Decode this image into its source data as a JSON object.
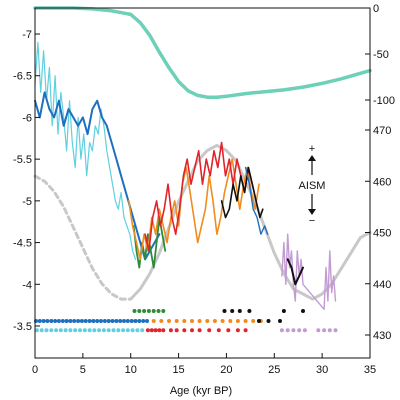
{
  "chart_data": {
    "type": "line",
    "xlabel": "Age (kyr BP)",
    "xlim": [
      0,
      35
    ],
    "x_ticks": [
      "0",
      "5",
      "10",
      "15",
      "20",
      "25",
      "30",
      "35"
    ],
    "axes": {
      "left": {
        "ylim": [
          -7.4,
          -3.2
        ],
        "ticks": [
          "-7",
          "-6.5",
          "-6",
          "-5.5",
          "-5",
          "-4.5",
          "-4",
          "-3.5"
        ]
      },
      "right_top": {
        "ylim": [
          -100,
          0
        ],
        "ticks": [
          "0",
          "-50",
          "-100"
        ]
      },
      "right_bottom": {
        "ylim": [
          425,
          472
        ],
        "ticks": [
          "470",
          "460",
          "450",
          "440",
          "430"
        ]
      }
    },
    "annotation": {
      "label": "AISM",
      "plus": "+",
      "minus": "−"
    },
    "colors": {
      "teal": "#6dd0b8",
      "insolation": "#c8c8c8",
      "cyan": "#5fd0df",
      "blue": "#1f6fbf",
      "green": "#2e8b3a",
      "orange": "#f08c1e",
      "red": "#e0242a",
      "black": "#111111",
      "purple": "#c39bd3"
    },
    "series": [
      {
        "axis": "right_top",
        "color": "teal",
        "width": 3.5,
        "x": [
          0,
          2,
          4,
          6,
          8,
          10,
          11,
          12,
          13,
          14,
          15,
          16,
          17,
          18,
          19,
          20,
          22,
          24,
          26,
          28,
          30,
          32,
          34,
          35
        ],
        "y": [
          0,
          0,
          0,
          -1,
          -3,
          -7,
          -16,
          -30,
          -48,
          -65,
          -80,
          -90,
          -95,
          -97,
          -97,
          -96,
          -93,
          -91,
          -89,
          -86,
          -82,
          -77,
          -71,
          -68
        ]
      },
      {
        "axis": "right_bottom",
        "color": "insolation",
        "width": 3,
        "dash_until_x": 9.5,
        "x": [
          0,
          1,
          2,
          3,
          4,
          5,
          6,
          7,
          8,
          9,
          10,
          11,
          12,
          13,
          14,
          15,
          16,
          17,
          18,
          19,
          20,
          21,
          22,
          23,
          24,
          25,
          26,
          27,
          28,
          29,
          30,
          31,
          32,
          33,
          34,
          35
        ],
        "y": [
          461,
          460,
          458,
          455,
          451,
          447,
          443,
          440,
          438,
          437,
          437,
          439,
          442,
          446,
          451,
          456,
          460,
          464,
          466,
          467,
          466,
          464,
          460,
          456,
          451,
          446,
          442,
          439,
          438,
          437,
          438,
          440,
          443,
          446,
          449,
          450
        ]
      },
      {
        "axis": "left",
        "color": "cyan",
        "width": 1.2,
        "x": [
          0,
          0.3,
          0.6,
          0.9,
          1.2,
          1.5,
          1.8,
          2.1,
          2.4,
          2.7,
          3.0,
          3.3,
          3.6,
          3.9,
          4.2,
          4.5,
          4.8,
          5.1,
          5.4,
          5.7,
          6.0,
          6.3,
          6.6,
          6.9,
          7.2,
          7.5,
          7.8,
          8.1,
          8.4,
          8.7,
          9.0,
          9.3,
          9.6,
          9.9,
          10.2,
          10.5
        ],
        "y": [
          -6.4,
          -6.9,
          -6.3,
          -6.8,
          -6.2,
          -6.6,
          -5.9,
          -6.5,
          -5.8,
          -6.3,
          -6.0,
          -5.6,
          -6.2,
          -5.7,
          -5.4,
          -6.0,
          -5.5,
          -5.8,
          -5.3,
          -5.7,
          -5.6,
          -5.9,
          -5.8,
          -6.1,
          -5.9,
          -5.6,
          -5.4,
          -5.2,
          -5.0,
          -4.9,
          -5.1,
          -4.8,
          -4.7,
          -4.6,
          -4.4,
          -4.3
        ]
      },
      {
        "axis": "left",
        "color": "blue",
        "width": 2,
        "x": [
          0,
          0.5,
          1,
          1.5,
          2,
          2.5,
          3,
          3.5,
          4,
          4.5,
          5,
          5.5,
          6,
          6.5,
          7,
          7.5,
          8,
          8.5,
          9,
          9.5,
          10,
          10.5,
          11,
          11.5,
          12,
          12.5,
          13
        ],
        "y": [
          -6.2,
          -6.0,
          -6.3,
          -6.1,
          -6.0,
          -6.2,
          -5.9,
          -6.1,
          -6.0,
          -5.9,
          -6.0,
          -5.8,
          -6.1,
          -6.2,
          -6.0,
          -5.9,
          -5.7,
          -5.5,
          -5.3,
          -5.1,
          -4.9,
          -4.7,
          -4.5,
          -4.3,
          -4.4,
          -4.5,
          -4.6
        ]
      },
      {
        "axis": "left",
        "color": "green",
        "width": 1.8,
        "x": [
          10.3,
          10.6,
          10.9,
          11.2,
          11.5,
          11.8,
          12.1,
          12.4,
          12.7,
          13.0,
          13.3,
          13.6
        ],
        "y": [
          -4.7,
          -4.4,
          -4.2,
          -4.5,
          -4.3,
          -4.6,
          -4.4,
          -4.2,
          -4.5,
          -4.8,
          -4.6,
          -4.4
        ]
      },
      {
        "axis": "left",
        "color": "orange",
        "width": 1.6,
        "x": [
          9.8,
          10.2,
          10.6,
          11,
          11.4,
          11.8,
          12.2,
          12.6,
          13,
          13.4,
          13.8,
          14.2,
          14.6,
          15,
          15.4,
          15.8,
          16.2,
          16.6,
          17,
          17.4,
          17.8,
          18.2,
          18.6,
          19,
          19.4,
          19.8,
          20.2,
          20.6,
          21,
          21.4,
          21.8,
          22.2,
          22.6,
          23,
          23.4
        ],
        "y": [
          -5.0,
          -4.7,
          -4.5,
          -4.3,
          -4.6,
          -4.4,
          -4.8,
          -4.6,
          -4.9,
          -4.7,
          -4.5,
          -4.8,
          -5.0,
          -4.7,
          -5.2,
          -5.4,
          -5.1,
          -4.8,
          -4.5,
          -4.7,
          -4.9,
          -5.3,
          -5.0,
          -4.6,
          -4.8,
          -5.1,
          -5.3,
          -5.5,
          -5.2,
          -4.9,
          -5.2,
          -5.4,
          -5.1,
          -4.9,
          -5.2
        ]
      },
      {
        "axis": "left",
        "color": "red",
        "width": 1.6,
        "x": [
          11.5,
          11.9,
          12.3,
          12.7,
          13.1,
          13.5,
          13.9,
          14.3,
          14.7,
          15.1,
          15.5,
          15.9,
          16.3,
          16.7,
          17.1,
          17.5,
          17.9,
          18.3,
          18.7,
          19.1,
          19.5,
          19.9,
          20.3,
          20.7,
          21.1,
          21.5,
          21.9,
          22.3,
          22.7,
          23.1
        ],
        "y": [
          -4.6,
          -4.4,
          -4.8,
          -5.0,
          -4.7,
          -4.9,
          -5.2,
          -4.8,
          -4.6,
          -4.9,
          -5.3,
          -5.5,
          -5.2,
          -5.4,
          -5.6,
          -5.2,
          -5.5,
          -5.3,
          -5.6,
          -5.4,
          -5.7,
          -5.3,
          -5.5,
          -5.2,
          -5.5,
          -5.3,
          -5.1,
          -5.4,
          -5.2,
          -5.0
        ]
      },
      {
        "axis": "left",
        "color": "black",
        "width": 1.6,
        "x": [
          19.5,
          19.9,
          20.3,
          20.7,
          21.1,
          21.5,
          21.9,
          22.3,
          22.7,
          23.1,
          23.5,
          23.8
        ],
        "y": [
          -5.0,
          -4.8,
          -4.9,
          -5.2,
          -5.0,
          -5.3,
          -5.1,
          -5.4,
          -5.2,
          -5.0,
          -4.8,
          -4.9
        ]
      },
      {
        "axis": "left",
        "color": "blue",
        "width": 1.4,
        "x": [
          22.0,
          22.4,
          22.8,
          23.2,
          23.6,
          24.0,
          24.3
        ],
        "y": [
          -5.4,
          -5.2,
          -4.9,
          -4.8,
          -4.6,
          -4.7,
          -4.6
        ]
      },
      {
        "axis": "left",
        "color": "purple",
        "width": 1.4,
        "x": [
          25.8,
          26.0,
          26.2,
          26.4,
          26.6,
          26.8,
          27.0,
          27.2,
          27.4,
          27.6,
          27.8,
          28.0,
          30.2,
          30.4,
          30.6,
          30.8,
          31.0,
          31.2,
          31.4
        ],
        "y": [
          -4.1,
          -4.5,
          -4.0,
          -4.6,
          -4.2,
          -4.4,
          -4.0,
          -3.8,
          -4.4,
          -4.1,
          -4.3,
          -4.0,
          -3.7,
          -4.2,
          -3.8,
          -4.4,
          -3.9,
          -4.1,
          -3.8
        ]
      },
      {
        "axis": "left",
        "color": "black",
        "width": 2,
        "x": [
          26.4,
          26.8,
          27.2,
          27.6,
          28.0
        ],
        "y": [
          -4.3,
          -4.2,
          -4.0,
          -4.1,
          -4.2
        ]
      }
    ],
    "dot_rows": [
      {
        "y": -3.45,
        "color": "cyan",
        "x": [
          0.2,
          0.7,
          1.2,
          1.7,
          2.2,
          2.7,
          3.2,
          3.7,
          4.2,
          4.7,
          5.2,
          5.7,
          6.2,
          6.7,
          7.2,
          7.7,
          8.2,
          8.7,
          9.2,
          9.7,
          10.2,
          10.7,
          11.2
        ]
      },
      {
        "y": -3.45,
        "color": "red",
        "x": [
          11.8,
          12.2,
          12.6,
          13.0,
          13.4,
          14.2,
          14.8,
          15.6,
          16.4,
          17.2,
          18.2,
          19.2,
          20.2,
          21.2,
          22.0
        ]
      },
      {
        "y": -3.45,
        "color": "purple",
        "x": [
          25.8,
          26.4,
          27.0,
          27.6,
          28.2,
          29.6,
          30.2,
          30.8,
          31.4
        ]
      },
      {
        "y": -3.56,
        "color": "blue",
        "x": [
          0.1,
          0.5,
          0.9,
          1.3,
          1.7,
          2.1,
          2.5,
          2.9,
          3.3,
          3.7,
          4.1,
          4.5,
          4.9,
          5.3,
          5.7,
          6.1,
          6.5,
          6.9,
          7.3,
          7.7,
          8.1,
          8.5,
          8.9,
          9.3,
          9.7,
          10.1,
          10.5,
          10.9,
          11.3,
          11.7
        ]
      },
      {
        "y": -3.56,
        "color": "orange",
        "x": [
          12.4,
          13.2,
          14.0,
          14.8,
          15.6,
          16.4,
          17.2,
          18.0,
          18.8,
          19.6,
          20.4,
          21.2,
          22.0,
          22.8,
          23.6
        ]
      },
      {
        "y": -3.56,
        "color": "black",
        "x": [
          23.4,
          24.4,
          25.6
        ]
      },
      {
        "y": -3.68,
        "color": "green",
        "x": [
          10.4,
          10.9,
          11.4,
          11.9,
          12.4,
          12.9,
          13.4
        ]
      },
      {
        "y": -3.68,
        "color": "black",
        "x": [
          19.8,
          20.6,
          21.4,
          22.4,
          26.0,
          28.0
        ]
      }
    ]
  }
}
